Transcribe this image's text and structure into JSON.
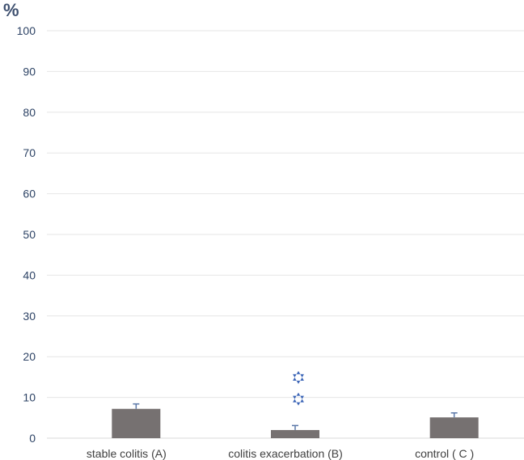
{
  "chart_data": {
    "type": "bar",
    "title": "",
    "xlabel": "",
    "ylabel": "%",
    "ylim": [
      0,
      100
    ],
    "yticks": [
      "0",
      "10",
      "20",
      "30",
      "40",
      "50",
      "60",
      "70",
      "80",
      "90",
      "100"
    ],
    "grid": true,
    "categories": [
      "stable colitis (A)",
      "colitis exacerbation (B)",
      "control ( C )"
    ],
    "values": [
      7.2,
      2.0,
      5.1
    ],
    "error_upper": [
      8.4,
      3.1,
      6.2
    ],
    "markers": [
      {
        "category": "colitis exacerbation (B)",
        "y": 14.9,
        "shape": "star",
        "color": "#3a64b6"
      },
      {
        "category": "colitis exacerbation (B)",
        "y": 9.6,
        "shape": "star",
        "color": "#3a64b6"
      }
    ],
    "colors": {
      "bar": "#767171",
      "grid": "#e6e6e6",
      "tick_text": "#2e4466",
      "axis_label": "#3f5170",
      "category_text": "#404040"
    }
  }
}
